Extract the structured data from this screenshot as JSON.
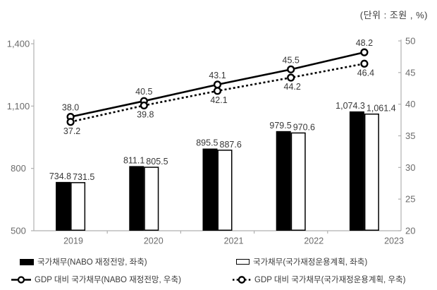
{
  "unit_label": "(단위 : 조원 , %)",
  "colors": {
    "series_black": "#000000",
    "bar_white_fill": "#ffffff",
    "axis_line": "#b0b0b0",
    "axis_text": "#6b6b6b",
    "data_label_text": "#383838",
    "legend_text": "#3a3a3a"
  },
  "chart_data": {
    "type": "combo-bar-line",
    "title": "",
    "xlabel": "",
    "ylabel": "",
    "grid": false,
    "legend_position": "bottom",
    "categories": [
      "2019",
      "2020",
      "2021",
      "2022",
      "2023"
    ],
    "series": [
      {
        "name": "국가채무(NABO 재정전망, 좌축)",
        "kind": "bar",
        "style": "solid-black",
        "axis": "left",
        "values": [
          734.8,
          811.1,
          895.5,
          979.5,
          1074.3
        ],
        "labels": [
          "734.8",
          "811.1",
          "895.5",
          "979.5",
          "1,074.3"
        ]
      },
      {
        "name": "국가채무(국가재정운용계획, 좌축)",
        "kind": "bar",
        "style": "outline-white",
        "axis": "left",
        "values": [
          731.5,
          805.5,
          887.6,
          970.6,
          1061.4
        ],
        "labels": [
          "731.5",
          "805.5",
          "887.6",
          "970.6",
          "1,061.4"
        ]
      },
      {
        "name": "GDP 대비 국가채무(NABO 재정전망, 우축)",
        "kind": "line",
        "style": "solid",
        "axis": "right",
        "values": [
          38.0,
          40.5,
          43.1,
          45.5,
          48.2
        ],
        "labels": [
          "38.0",
          "40.5",
          "43.1",
          "45.5",
          "48.2"
        ]
      },
      {
        "name": "GDP 대비 국가채무(국가재정운용계획, 우축)",
        "kind": "line",
        "style": "dashed",
        "axis": "right",
        "values": [
          37.2,
          39.8,
          42.1,
          44.2,
          46.4
        ],
        "labels": [
          "37.2",
          "39.8",
          "42.1",
          "44.2",
          "46.4"
        ]
      }
    ],
    "left_axis": {
      "min": 500,
      "max": 1400,
      "ticks": [
        "500",
        "800",
        "1,100",
        "1,400"
      ]
    },
    "right_axis": {
      "min": 20,
      "max": 50,
      "ticks": [
        "20",
        "25",
        "30",
        "35",
        "40",
        "45",
        "50"
      ]
    }
  }
}
